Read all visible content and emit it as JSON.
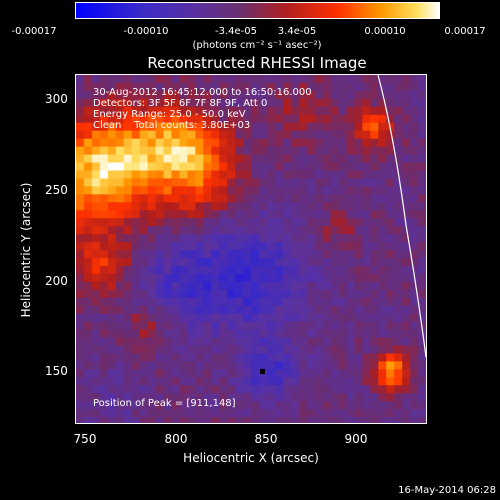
{
  "colorbar": {
    "ticks": [
      "-0.00017",
      "-0.00010",
      "-3.4e-05",
      "3.4e-05",
      "0.00010",
      "0.00017"
    ],
    "unit": "(photons cm⁻² s⁻¹ asec⁻²)"
  },
  "chart_data": {
    "type": "heatmap",
    "title": "Reconstructed RHESSI Image",
    "xlabel": "Heliocentric X (arcsec)",
    "ylabel": "Heliocentric Y (arcsec)",
    "xlim": [
      745,
      937
    ],
    "ylim": [
      118,
      310
    ],
    "x_ticks": [
      "750",
      "800",
      "850",
      "900"
    ],
    "y_ticks": [
      "150",
      "200",
      "250",
      "300"
    ],
    "color_range": [
      -0.00017,
      0.00017
    ],
    "annotations": [
      "30-Aug-2012 16:45:12.000 to 16:50:16.000",
      "Detectors: 3F 5F 6F 7F 8F 9F, Att 0",
      "Energy Range: 25.0 - 50.0 keV",
      "Clean    Total counts: 3.80E+03"
    ],
    "peak_text": "Position of Peak = [911,148]",
    "peak": {
      "x": 911,
      "y": 148
    }
  },
  "footer": {
    "date": "16-May-2014 06:28"
  }
}
